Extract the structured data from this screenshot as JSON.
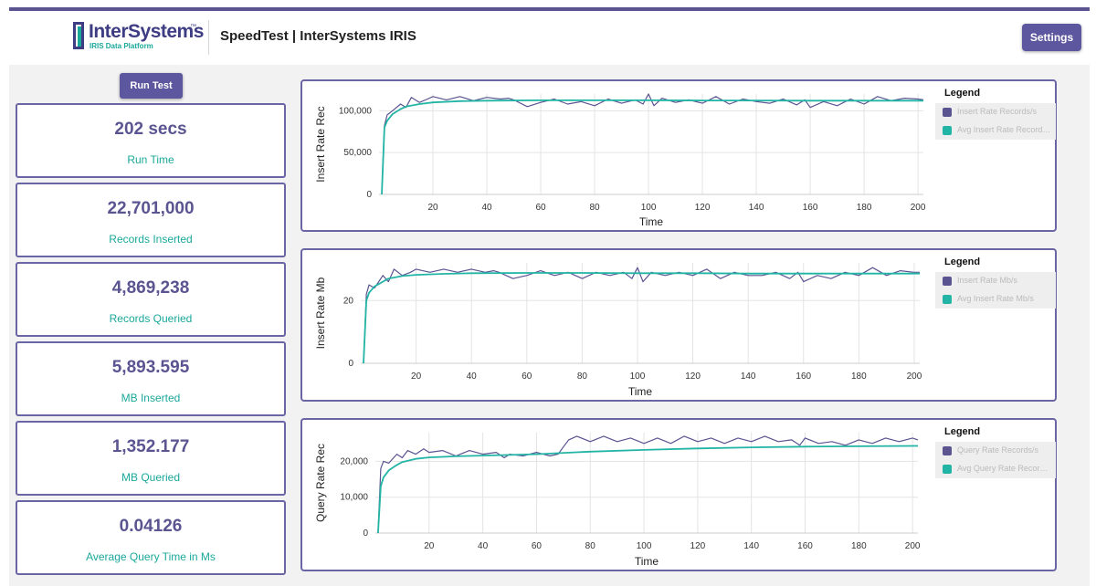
{
  "header": {
    "logo_name": "InterSystems",
    "logo_sub": "IRIS Data Platform",
    "title": "SpeedTest | InterSystems IRIS",
    "settings_label": "Settings"
  },
  "controls": {
    "run_test_label": "Run Test"
  },
  "stats": [
    {
      "value": "202 secs",
      "label": "Run Time"
    },
    {
      "value": "22,701,000",
      "label": "Records Inserted"
    },
    {
      "value": "4,869,238",
      "label": "Records Queried"
    },
    {
      "value": "5,893.595",
      "label": "MB Inserted"
    },
    {
      "value": "1,352.177",
      "label": "MB Queried"
    },
    {
      "value": "0.04126",
      "label": "Average Query Time in Ms"
    }
  ],
  "colors": {
    "accent": "#5c579e",
    "teal": "#1aa89a",
    "series_main": "#5a5491",
    "series_avg": "#22b5a5"
  },
  "chart_data": [
    {
      "type": "line",
      "title": "",
      "xlabel": "Time",
      "ylabel": "Insert Rate Rec",
      "xlim": [
        0,
        202
      ],
      "ylim": [
        0,
        120000
      ],
      "xticks": [
        20,
        40,
        60,
        80,
        100,
        120,
        140,
        160,
        180,
        200
      ],
      "yticks": [
        0,
        50000,
        100000
      ],
      "ytick_labels": [
        "0",
        "50,000",
        "100,000"
      ],
      "grid": true,
      "legend": {
        "title": "Legend",
        "position": "right"
      },
      "series": [
        {
          "name": "Insert Rate Records/s",
          "x": [
            1,
            2,
            3,
            5,
            8,
            10,
            12,
            15,
            18,
            20,
            25,
            30,
            35,
            40,
            45,
            48,
            50,
            55,
            60,
            65,
            70,
            75,
            80,
            85,
            90,
            95,
            98,
            100,
            102,
            105,
            110,
            115,
            120,
            125,
            130,
            135,
            140,
            145,
            150,
            155,
            158,
            160,
            165,
            170,
            175,
            180,
            185,
            190,
            195,
            200,
            202
          ],
          "y": [
            0,
            82000,
            95000,
            100000,
            108000,
            104000,
            116000,
            110000,
            114000,
            117000,
            113000,
            117000,
            112000,
            116000,
            114000,
            115000,
            113000,
            105000,
            110000,
            114000,
            108000,
            111000,
            106000,
            114000,
            109000,
            113000,
            108000,
            120000,
            106000,
            115000,
            110000,
            113000,
            109000,
            117000,
            108000,
            114000,
            111000,
            109000,
            114000,
            107000,
            113000,
            104000,
            111000,
            106000,
            114000,
            108000,
            117000,
            112000,
            115000,
            114000,
            113000
          ]
        },
        {
          "name": "Avg Insert Rate Records/s",
          "x": [
            1,
            2,
            3,
            5,
            8,
            10,
            15,
            20,
            30,
            40,
            60,
            80,
            100,
            120,
            140,
            160,
            180,
            202
          ],
          "y": [
            0,
            80000,
            88000,
            96000,
            102000,
            105000,
            108000,
            110000,
            111500,
            112000,
            112500,
            112500,
            112500,
            112300,
            112200,
            112000,
            112000,
            112000
          ]
        }
      ]
    },
    {
      "type": "line",
      "title": "",
      "xlabel": "Time",
      "ylabel": "Insert Rate Mb",
      "xlim": [
        0,
        202
      ],
      "ylim": [
        0,
        32
      ],
      "xticks": [
        20,
        40,
        60,
        80,
        100,
        120,
        140,
        160,
        180,
        200
      ],
      "yticks": [
        0,
        20
      ],
      "ytick_labels": [
        "0",
        "20"
      ],
      "grid": true,
      "legend": {
        "title": "Legend",
        "position": "right"
      },
      "series": [
        {
          "name": "Insert Rate Mb/s",
          "x": [
            1,
            2,
            3,
            5,
            8,
            10,
            12,
            15,
            18,
            20,
            25,
            30,
            35,
            40,
            45,
            48,
            50,
            55,
            60,
            65,
            70,
            75,
            80,
            85,
            90,
            95,
            98,
            100,
            102,
            105,
            110,
            115,
            120,
            125,
            130,
            135,
            140,
            145,
            150,
            155,
            158,
            160,
            165,
            170,
            175,
            180,
            185,
            190,
            195,
            200,
            202
          ],
          "y": [
            0,
            22,
            25,
            24,
            28,
            26,
            30,
            28,
            29,
            30,
            29,
            30,
            29,
            30,
            29,
            29.5,
            29,
            27,
            28,
            29.5,
            28,
            29,
            27,
            29,
            28,
            29,
            27,
            30.5,
            26,
            29,
            28,
            29,
            28,
            30,
            27,
            29,
            28,
            28,
            29,
            27,
            29,
            26,
            28,
            27,
            29,
            28,
            30.5,
            28,
            29.5,
            29,
            29
          ]
        },
        {
          "name": "Avg Insert Rate Mb/s",
          "x": [
            1,
            2,
            3,
            5,
            8,
            10,
            15,
            20,
            30,
            40,
            60,
            80,
            100,
            120,
            140,
            160,
            180,
            202
          ],
          "y": [
            0,
            20,
            22.5,
            24.5,
            26,
            27,
            27.8,
            28.2,
            28.5,
            28.7,
            28.8,
            28.8,
            28.7,
            28.7,
            28.6,
            28.6,
            28.6,
            28.6
          ]
        }
      ]
    },
    {
      "type": "line",
      "title": "",
      "xlabel": "Time",
      "ylabel": "Query Rate Rec",
      "xlim": [
        0,
        202
      ],
      "ylim": [
        0,
        28000
      ],
      "xticks": [
        20,
        40,
        60,
        80,
        100,
        120,
        140,
        160,
        180,
        200
      ],
      "yticks": [
        0,
        10000,
        20000
      ],
      "ytick_labels": [
        "0",
        "10,000",
        "20,000"
      ],
      "grid": true,
      "legend": {
        "title": "Legend",
        "position": "right"
      },
      "series": [
        {
          "name": "Query Rate Records/s",
          "x": [
            1,
            2,
            3,
            5,
            8,
            10,
            12,
            15,
            18,
            20,
            25,
            30,
            35,
            40,
            45,
            48,
            50,
            55,
            60,
            65,
            68,
            70,
            72,
            75,
            80,
            85,
            90,
            95,
            100,
            105,
            110,
            115,
            120,
            125,
            130,
            135,
            140,
            145,
            150,
            155,
            158,
            160,
            165,
            170,
            175,
            180,
            185,
            190,
            195,
            200,
            202
          ],
          "y": [
            0,
            18000,
            20000,
            19500,
            22000,
            21000,
            23000,
            22000,
            23500,
            22500,
            23000,
            21500,
            23000,
            22000,
            22500,
            21000,
            22000,
            21500,
            22500,
            21500,
            22000,
            24000,
            26000,
            27000,
            25500,
            27000,
            25500,
            26500,
            25000,
            26500,
            25000,
            27000,
            25500,
            26500,
            25000,
            26500,
            25500,
            27000,
            25500,
            26000,
            24500,
            26500,
            25000,
            25500,
            24500,
            26000,
            25000,
            26500,
            25500,
            26500,
            26000
          ]
        },
        {
          "name": "Avg Query Rate Records/s",
          "x": [
            1,
            2,
            3,
            5,
            8,
            10,
            15,
            20,
            30,
            40,
            60,
            80,
            100,
            120,
            140,
            160,
            180,
            202
          ],
          "y": [
            0,
            13000,
            15500,
            17500,
            19000,
            19800,
            20700,
            21100,
            21400,
            21600,
            22000,
            22700,
            23200,
            23600,
            23900,
            24100,
            24200,
            24300
          ]
        }
      ]
    }
  ]
}
